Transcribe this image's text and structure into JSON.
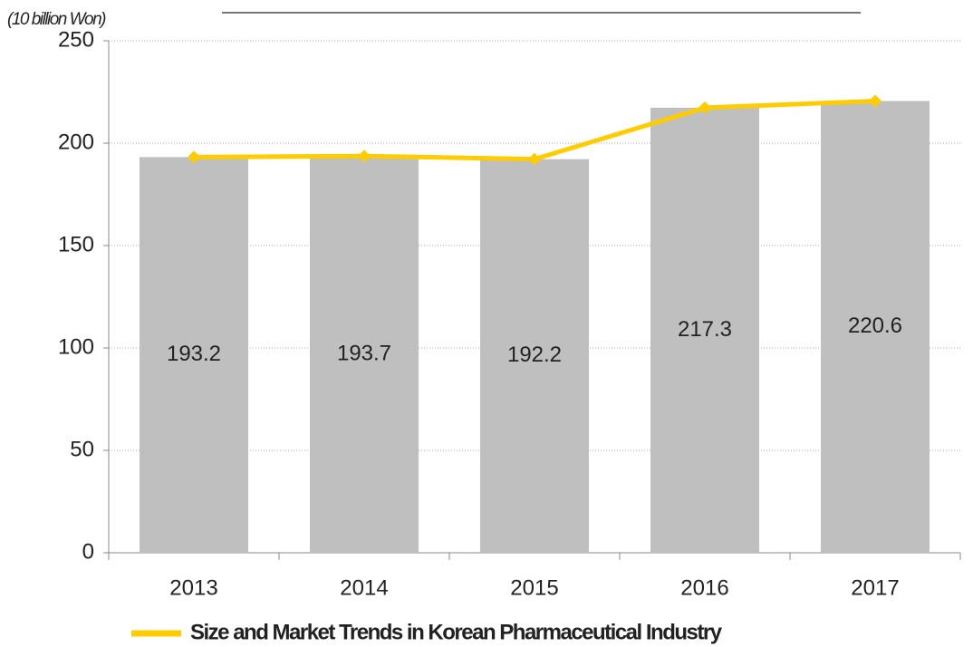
{
  "chart_data": {
    "type": "bar",
    "ylabel": "(10 billion Won)",
    "categories": [
      "2013",
      "2014",
      "2015",
      "2016",
      "2017"
    ],
    "bar_color": "#bfbfbf",
    "series": [
      {
        "name": "Size and Market Trends  in Korean Pharmaceutical Industry",
        "type": "line",
        "color": "#ffcc00",
        "values": [
          193.2,
          193.7,
          192.2,
          217.3,
          220.6
        ]
      }
    ],
    "ylim": [
      0,
      250
    ],
    "yticks": [
      0,
      50,
      100,
      150,
      200,
      250
    ],
    "grid": true,
    "legend": "bottom"
  }
}
